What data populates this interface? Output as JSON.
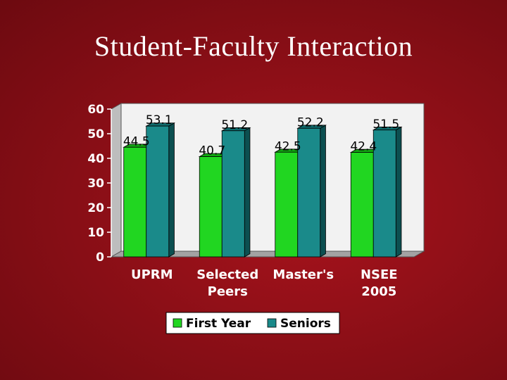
{
  "title": "Student-Faculty Interaction",
  "chart_data": {
    "type": "bar",
    "categories": [
      [
        "UPRM"
      ],
      [
        "Selected",
        "Peers"
      ],
      [
        "Master's"
      ],
      [
        "NSEE",
        "2005"
      ]
    ],
    "series": [
      {
        "name": "First Year",
        "values": [
          44.5,
          40.7,
          42.5,
          42.4
        ],
        "color": "#21d621",
        "side_color": "#118a11",
        "top_color": "#12a512"
      },
      {
        "name": "Seniors",
        "values": [
          53.1,
          51.2,
          52.2,
          51.5
        ],
        "color": "#1a8a8a",
        "side_color": "#0c4f50",
        "top_color": "#0f6a6b"
      }
    ],
    "value_labels": [
      [
        "44.5",
        "40.7",
        "42.5",
        "42.4"
      ],
      [
        "53.1",
        "51.2",
        "52.2",
        "51.5"
      ]
    ],
    "yticks": [
      "0",
      "10",
      "20",
      "30",
      "40",
      "50",
      "60"
    ],
    "ylim": [
      0,
      60
    ],
    "grid": false,
    "legend_position": "bottom",
    "colors": {
      "plot_background": "#f2f2f2",
      "floor": "#a3a3a3",
      "wall_side": "#bdbdbd",
      "legend_background": "#ffffff"
    }
  }
}
